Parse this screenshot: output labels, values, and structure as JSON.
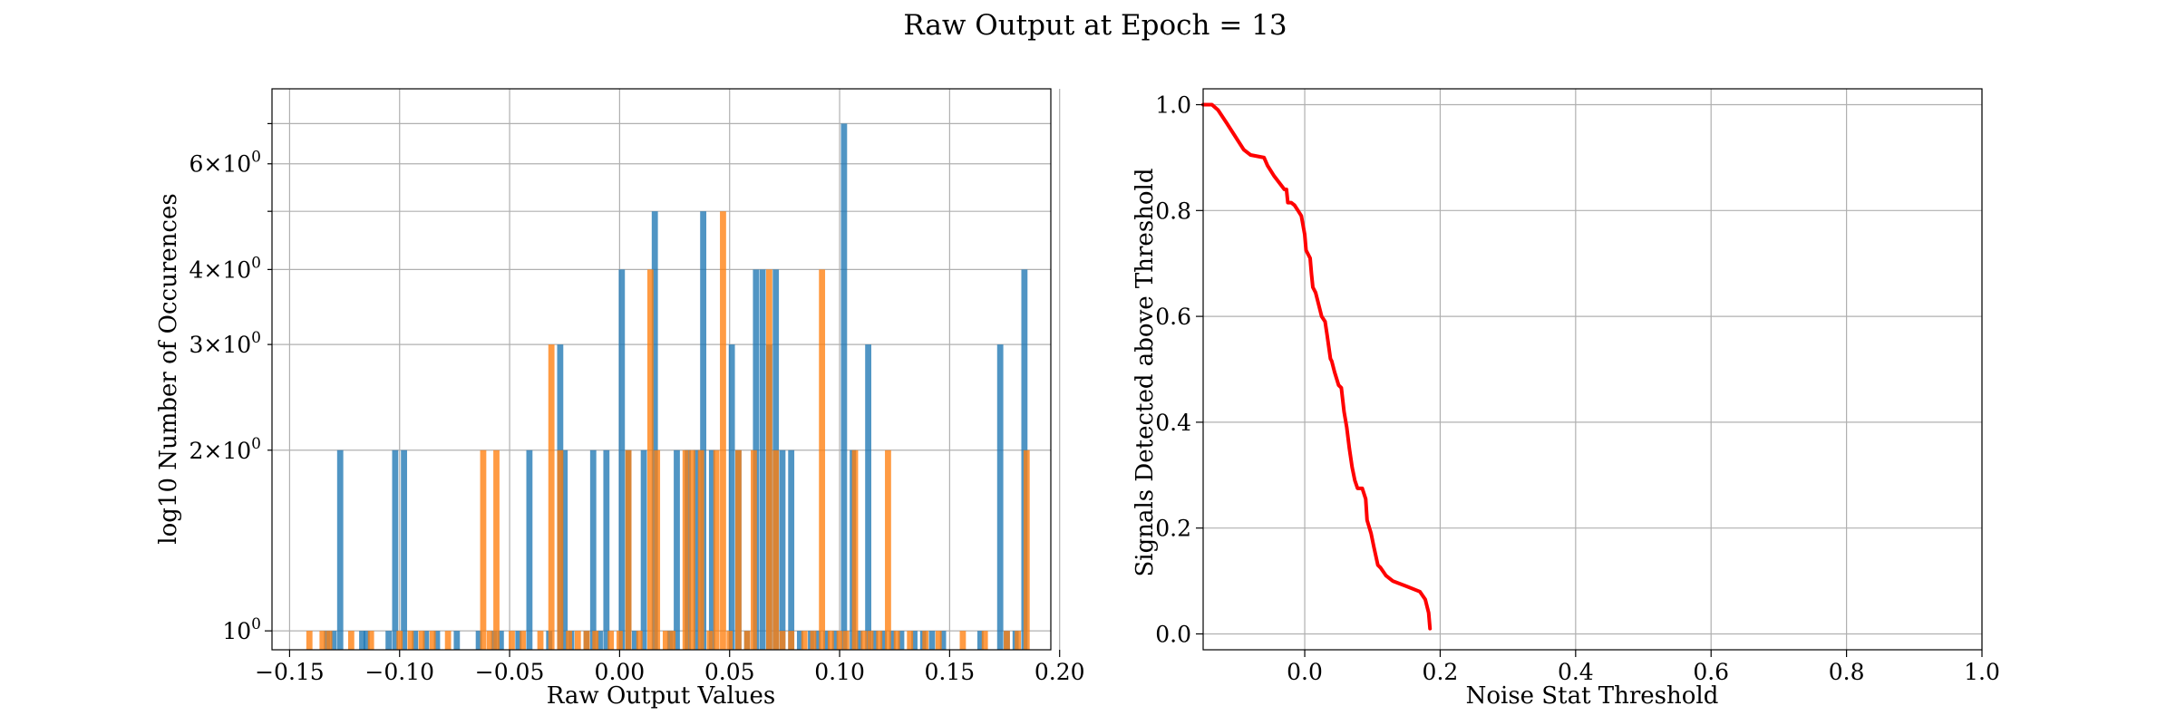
{
  "figure": {
    "title": "Raw Output at Epoch = 13"
  },
  "colors": {
    "blue": "#1f77b4",
    "orange": "#ff7f0e",
    "red": "#ff0000",
    "grid": "#b0b0b0"
  },
  "chart_data": [
    {
      "type": "bar",
      "subtype": "histogram",
      "xlabel": "Raw Output Values",
      "ylabel": "log10 Number of Occurences",
      "xlim": [
        -0.158,
        0.196
      ],
      "ylim": [
        0.93,
        8.0
      ],
      "yscale": "log",
      "grid": true,
      "x_ticks": [
        {
          "value": -0.15,
          "label": "−0.15"
        },
        {
          "value": -0.1,
          "label": "−0.10"
        },
        {
          "value": -0.05,
          "label": "−0.05"
        },
        {
          "value": 0.0,
          "label": "0.00"
        },
        {
          "value": 0.05,
          "label": "0.05"
        },
        {
          "value": 0.1,
          "label": "0.10"
        },
        {
          "value": 0.15,
          "label": "0.15"
        },
        {
          "value": 0.2,
          "label": "0.20"
        }
      ],
      "y_major_ticks": [
        {
          "value": 1,
          "label": "10",
          "exp": "0"
        }
      ],
      "y_minor_ticks": [
        {
          "value": 2,
          "mant": "2",
          "label": "10",
          "exp": "0"
        },
        {
          "value": 3,
          "mant": "3",
          "label": "10",
          "exp": "0"
        },
        {
          "value": 4,
          "mant": "4",
          "label": "10",
          "exp": "0"
        },
        {
          "value": 5,
          "mant": "",
          "label": "",
          "exp": ""
        },
        {
          "value": 6,
          "mant": "6",
          "label": "10",
          "exp": "0"
        },
        {
          "value": 7,
          "mant": "",
          "label": "",
          "exp": ""
        }
      ],
      "bin_width": 0.0028,
      "series": [
        {
          "color": "blue",
          "bins": [
            [
              -0.133,
              1
            ],
            [
              -0.13,
              1
            ],
            [
              -0.127,
              2
            ],
            [
              -0.117,
              1
            ],
            [
              -0.115,
              1
            ],
            [
              -0.105,
              1
            ],
            [
              -0.102,
              2
            ],
            [
              -0.098,
              2
            ],
            [
              -0.093,
              1
            ],
            [
              -0.088,
              1
            ],
            [
              -0.083,
              1
            ],
            [
              -0.074,
              1
            ],
            [
              -0.064,
              1
            ],
            [
              -0.057,
              1
            ],
            [
              -0.054,
              1
            ],
            [
              -0.046,
              1
            ],
            [
              -0.041,
              2
            ],
            [
              -0.032,
              1
            ],
            [
              -0.027,
              3
            ],
            [
              -0.025,
              2
            ],
            [
              -0.022,
              1
            ],
            [
              -0.015,
              1
            ],
            [
              -0.012,
              2
            ],
            [
              -0.009,
              1
            ],
            [
              -0.006,
              2
            ],
            [
              0.001,
              4
            ],
            [
              0.004,
              2
            ],
            [
              0.007,
              1
            ],
            [
              0.011,
              2
            ],
            [
              0.016,
              5
            ],
            [
              0.023,
              1
            ],
            [
              0.026,
              2
            ],
            [
              0.031,
              2
            ],
            [
              0.035,
              2
            ],
            [
              0.038,
              5
            ],
            [
              0.042,
              2
            ],
            [
              0.051,
              3
            ],
            [
              0.054,
              2
            ],
            [
              0.058,
              1
            ],
            [
              0.062,
              4
            ],
            [
              0.065,
              4
            ],
            [
              0.068,
              3
            ],
            [
              0.071,
              4
            ],
            [
              0.074,
              2
            ],
            [
              0.078,
              2
            ],
            [
              0.082,
              1
            ],
            [
              0.087,
              1
            ],
            [
              0.09,
              1
            ],
            [
              0.094,
              1
            ],
            [
              0.098,
              1
            ],
            [
              0.102,
              7
            ],
            [
              0.106,
              2
            ],
            [
              0.109,
              1
            ],
            [
              0.113,
              3
            ],
            [
              0.116,
              1
            ],
            [
              0.12,
              1
            ],
            [
              0.124,
              1
            ],
            [
              0.128,
              1
            ],
            [
              0.134,
              1
            ],
            [
              0.138,
              1
            ],
            [
              0.142,
              1
            ],
            [
              0.147,
              1
            ],
            [
              0.164,
              1
            ],
            [
              0.173,
              3
            ],
            [
              0.176,
              1
            ],
            [
              0.18,
              1
            ],
            [
              0.184,
              4
            ]
          ]
        },
        {
          "color": "orange",
          "bins": [
            [
              -0.141,
              1
            ],
            [
              -0.135,
              1
            ],
            [
              -0.132,
              1
            ],
            [
              -0.122,
              1
            ],
            [
              -0.113,
              1
            ],
            [
              -0.1,
              1
            ],
            [
              -0.095,
              1
            ],
            [
              -0.09,
              1
            ],
            [
              -0.085,
              1
            ],
            [
              -0.078,
              1
            ],
            [
              -0.062,
              2
            ],
            [
              -0.059,
              1
            ],
            [
              -0.056,
              2
            ],
            [
              -0.049,
              1
            ],
            [
              -0.044,
              1
            ],
            [
              -0.036,
              1
            ],
            [
              -0.031,
              3
            ],
            [
              -0.027,
              2
            ],
            [
              -0.023,
              1
            ],
            [
              -0.019,
              1
            ],
            [
              -0.015,
              1
            ],
            [
              -0.011,
              1
            ],
            [
              -0.004,
              1
            ],
            [
              0.0,
              1
            ],
            [
              0.004,
              2
            ],
            [
              0.009,
              1
            ],
            [
              0.014,
              4
            ],
            [
              0.017,
              2
            ],
            [
              0.021,
              1
            ],
            [
              0.024,
              1
            ],
            [
              0.03,
              2
            ],
            [
              0.033,
              2
            ],
            [
              0.037,
              2
            ],
            [
              0.041,
              1
            ],
            [
              0.044,
              2
            ],
            [
              0.047,
              5
            ],
            [
              0.05,
              1
            ],
            [
              0.054,
              2
            ],
            [
              0.058,
              1
            ],
            [
              0.061,
              2
            ],
            [
              0.068,
              4
            ],
            [
              0.071,
              2
            ],
            [
              0.074,
              1
            ],
            [
              0.078,
              1
            ],
            [
              0.084,
              1
            ],
            [
              0.088,
              1
            ],
            [
              0.092,
              4
            ],
            [
              0.096,
              1
            ],
            [
              0.1,
              1
            ],
            [
              0.103,
              1
            ],
            [
              0.107,
              2
            ],
            [
              0.111,
              1
            ],
            [
              0.114,
              1
            ],
            [
              0.118,
              1
            ],
            [
              0.122,
              2
            ],
            [
              0.126,
              1
            ],
            [
              0.132,
              1
            ],
            [
              0.139,
              1
            ],
            [
              0.145,
              1
            ],
            [
              0.156,
              1
            ],
            [
              0.166,
              1
            ],
            [
              0.176,
              1
            ],
            [
              0.181,
              1
            ],
            [
              0.185,
              2
            ]
          ]
        }
      ]
    },
    {
      "type": "line",
      "xlabel": "Noise Stat Threshold",
      "ylabel": "Signals Detected above Threshold",
      "xlim": [
        -0.15,
        1.0
      ],
      "ylim": [
        -0.03,
        1.03
      ],
      "grid": true,
      "x_ticks": [
        {
          "value": 0.0,
          "label": "0.0"
        },
        {
          "value": 0.2,
          "label": "0.2"
        },
        {
          "value": 0.4,
          "label": "0.4"
        },
        {
          "value": 0.6,
          "label": "0.6"
        },
        {
          "value": 0.8,
          "label": "0.8"
        },
        {
          "value": 1.0,
          "label": "1.0"
        }
      ],
      "y_ticks": [
        {
          "value": 0.0,
          "label": "0.0"
        },
        {
          "value": 0.2,
          "label": "0.2"
        },
        {
          "value": 0.4,
          "label": "0.4"
        },
        {
          "value": 0.6,
          "label": "0.6"
        },
        {
          "value": 0.8,
          "label": "0.8"
        },
        {
          "value": 1.0,
          "label": "1.0"
        }
      ],
      "series": [
        {
          "color": "red",
          "x": [
            -0.15,
            -0.137,
            -0.128,
            -0.115,
            -0.1,
            -0.09,
            -0.08,
            -0.06,
            -0.055,
            -0.045,
            -0.03,
            -0.027,
            -0.025,
            -0.02,
            -0.015,
            -0.01,
            -0.005,
            0.0,
            0.002,
            0.008,
            0.01,
            0.012,
            0.016,
            0.02,
            0.025,
            0.03,
            0.033,
            0.038,
            0.04,
            0.044,
            0.05,
            0.054,
            0.058,
            0.062,
            0.066,
            0.07,
            0.074,
            0.078,
            0.085,
            0.09,
            0.092,
            0.098,
            0.102,
            0.108,
            0.112,
            0.12,
            0.13,
            0.15,
            0.17,
            0.178,
            0.183,
            0.185
          ],
          "y": [
            1.0,
            1.0,
            0.99,
            0.965,
            0.935,
            0.915,
            0.905,
            0.9,
            0.885,
            0.865,
            0.84,
            0.84,
            0.815,
            0.815,
            0.81,
            0.8,
            0.79,
            0.755,
            0.725,
            0.71,
            0.68,
            0.655,
            0.645,
            0.625,
            0.6,
            0.59,
            0.565,
            0.52,
            0.515,
            0.495,
            0.47,
            0.465,
            0.42,
            0.39,
            0.35,
            0.315,
            0.29,
            0.275,
            0.275,
            0.255,
            0.215,
            0.19,
            0.165,
            0.13,
            0.125,
            0.11,
            0.1,
            0.09,
            0.08,
            0.065,
            0.04,
            0.01
          ]
        }
      ]
    }
  ]
}
